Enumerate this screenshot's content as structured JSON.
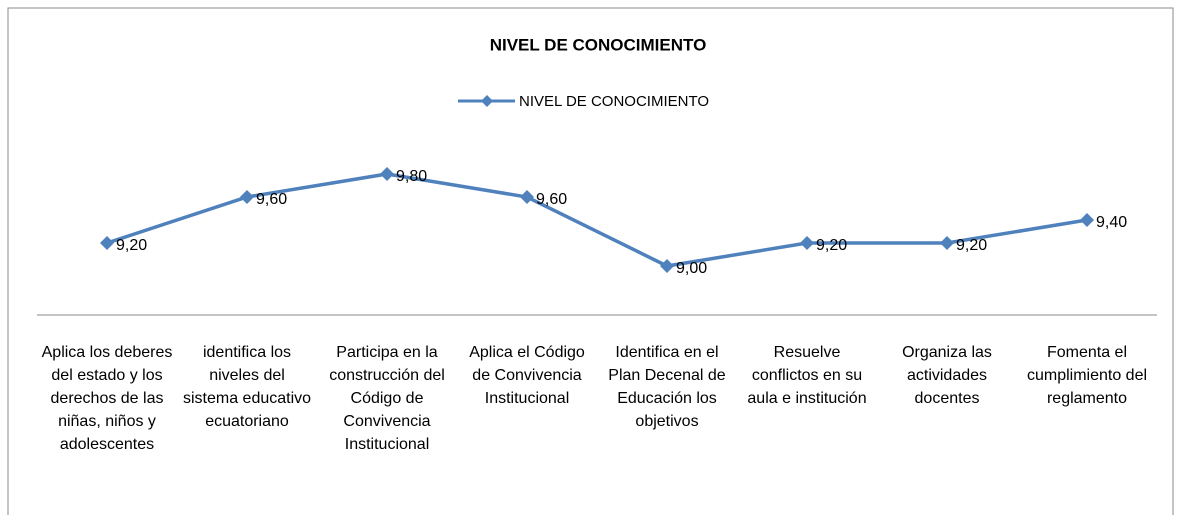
{
  "chart_data": {
    "type": "line",
    "title": "NIVEL DE CONOCIMIENTO",
    "categories": [
      "Aplica los deberes del estado y los derechos de las niñas, niños y adolescentes",
      "identifica los niveles del sistema educativo ecuatoriano",
      "Participa en la construcción del Código de Convivencia Institucional",
      "Aplica el Código de Convivencia Institucional",
      "Identifica en el Plan Decenal de Educación los objetivos",
      "Resuelve conflictos en su aula e institución",
      "Organiza las actividades docentes",
      "Fomenta el cumplimiento del reglamento"
    ],
    "series": [
      {
        "name": "NIVEL DE CONOCIMIENTO",
        "color": "#4f81bd",
        "values": [
          9.2,
          9.6,
          9.8,
          9.6,
          9.0,
          9.2,
          9.2,
          9.4
        ],
        "value_labels": [
          "9,20",
          "9,60",
          "9,80",
          "9,60",
          "9,00",
          "9,20",
          "9,20",
          "9,40"
        ]
      }
    ]
  }
}
